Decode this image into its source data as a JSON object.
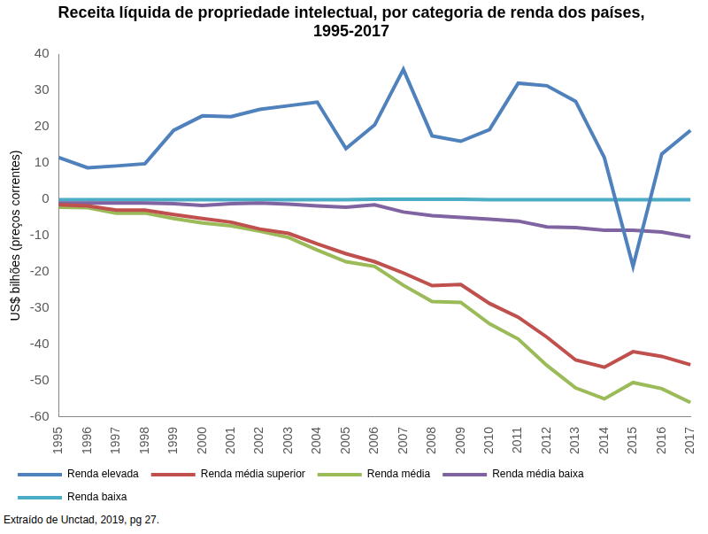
{
  "chart_data": {
    "type": "line",
    "title": [
      "Receita líquida de propriedade intelectual, por categoria de renda dos países,",
      "1995-2017"
    ],
    "y_label": "US$ bilhões (preços correntes)",
    "source": "Extraído de Unctad, 2019, pg 27.",
    "categories": [
      "1995",
      "1996",
      "1997",
      "1998",
      "1999",
      "2000",
      "2001",
      "2002",
      "2003",
      "2004",
      "2005",
      "2006",
      "2007",
      "2008",
      "2009",
      "2010",
      "2011",
      "2012",
      "2013",
      "2014",
      "2015",
      "2016",
      "2017"
    ],
    "series": [
      {
        "name": "Renda elevada",
        "color": "#4f81bd",
        "values": [
          11.5,
          8.7,
          9.2,
          9.8,
          19,
          23,
          22.8,
          24.8,
          25.8,
          26.8,
          14,
          20.5,
          35.8,
          17.5,
          16,
          19.2,
          32,
          31.3,
          27,
          11.5,
          -18.5,
          12.5,
          19
        ]
      },
      {
        "name": "Renda média superior",
        "color": "#c0504d",
        "values": [
          -1.5,
          -1.8,
          -3,
          -3,
          -4.2,
          -5.3,
          -6.3,
          -8.2,
          -9.4,
          -12.3,
          -15,
          -17.2,
          -20.3,
          -23.8,
          -23.5,
          -28.7,
          -32.5,
          -38,
          -44.3,
          -46.3,
          -42,
          -43.3,
          -45.6
        ]
      },
      {
        "name": "Renda média",
        "color": "#9bbb59",
        "values": [
          -2.2,
          -2.3,
          -3.8,
          -3.8,
          -5.3,
          -6.5,
          -7.3,
          -8.8,
          -10.5,
          -14,
          -17.2,
          -18.5,
          -23.7,
          -28.2,
          -28.4,
          -34.3,
          -38.5,
          -45.8,
          -52,
          -55,
          -50.5,
          -52.2,
          -56
        ]
      },
      {
        "name": "Renda média baixa",
        "color": "#8064a2",
        "values": [
          -1,
          -1,
          -1,
          -1,
          -1.2,
          -1.7,
          -1.2,
          -1,
          -1.3,
          -1.8,
          -2.2,
          -1.5,
          -3.5,
          -4.5,
          -5,
          -5.5,
          -6,
          -7.6,
          -7.8,
          -8.5,
          -8.5,
          -9,
          -10.4
        ]
      },
      {
        "name": "Renda baixa",
        "color": "#4bacc6",
        "values": [
          -0.1,
          -0.1,
          -0.1,
          -0.1,
          -0.1,
          -0.1,
          -0.1,
          -0.1,
          -0.1,
          -0.1,
          -0.1,
          0,
          0,
          0,
          0,
          -0.1,
          -0.1,
          -0.1,
          -0.1,
          -0.1,
          -0.1,
          -0.1,
          -0.1
        ]
      }
    ],
    "ylim": [
      -60,
      40
    ],
    "yticks": [
      -60,
      -50,
      -40,
      -30,
      -20,
      -10,
      0,
      10,
      20,
      30,
      40
    ],
    "grid": false,
    "legend": "bottom"
  }
}
